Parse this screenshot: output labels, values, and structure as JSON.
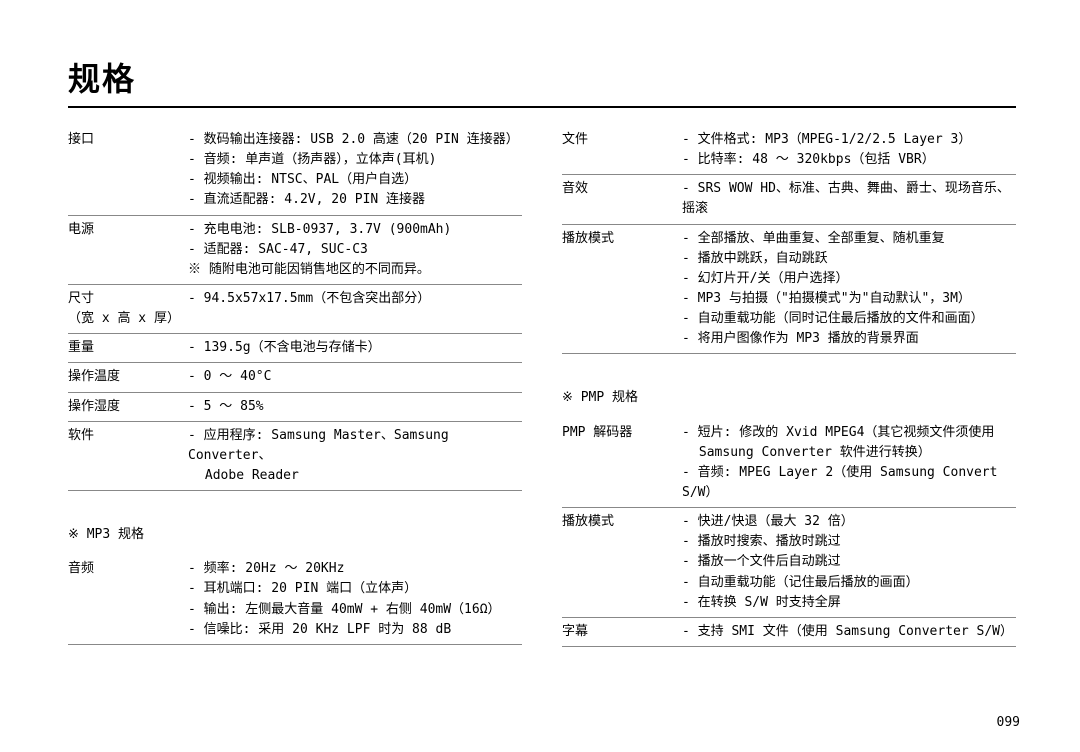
{
  "page_title": "规格",
  "page_number": "099",
  "left": {
    "rows": [
      {
        "label": "接口",
        "values": [
          {
            "t": "item",
            "v": "数码输出连接器: USB 2.0 高速（20 PIN 连接器）"
          },
          {
            "t": "item",
            "v": "音频: 单声道（扬声器），立体声(耳机)"
          },
          {
            "t": "item",
            "v": "视频输出: NTSC、PAL（用户自选）"
          },
          {
            "t": "item",
            "v": "直流适配器: 4.2V, 20 PIN 连接器"
          }
        ]
      },
      {
        "label": "电源",
        "values": [
          {
            "t": "item",
            "v": "充电电池: SLB-0937, 3.7V (900mAh)"
          },
          {
            "t": "item",
            "v": "适配器: SAC-47, SUC-C3"
          },
          {
            "t": "note",
            "v": "随附电池可能因销售地区的不同而异。"
          }
        ]
      },
      {
        "label": "尺寸\n（宽 x 高 x 厚）",
        "values": [
          {
            "t": "item",
            "v": "94.5x57x17.5mm（不包含突出部分）"
          }
        ]
      },
      {
        "label": "重量",
        "values": [
          {
            "t": "item",
            "v": "139.5g（不含电池与存储卡）"
          }
        ]
      },
      {
        "label": "操作温度",
        "values": [
          {
            "t": "item",
            "v": "0 ～ 40°C"
          }
        ]
      },
      {
        "label": "操作湿度",
        "values": [
          {
            "t": "item",
            "v": "5 ～ 85%"
          }
        ]
      },
      {
        "label": "软件",
        "values": [
          {
            "t": "item",
            "v": "应用程序:  Samsung Master、Samsung Converter、"
          },
          {
            "t": "indent",
            "v": "Adobe Reader"
          }
        ]
      }
    ],
    "subheading": "MP3 规格",
    "rows2": [
      {
        "label": "音频",
        "values": [
          {
            "t": "item",
            "v": "频率: 20Hz ～ 20KHz"
          },
          {
            "t": "item",
            "v": "耳机端口: 20 PIN 端口（立体声）"
          },
          {
            "t": "item",
            "v": "输出: 左侧最大音量 40mW + 右侧 40mW（16Ω）"
          },
          {
            "t": "item",
            "v": "信噪比: 采用 20 KHz LPF 时为 88 dB"
          }
        ]
      }
    ]
  },
  "right": {
    "rows": [
      {
        "label": "文件",
        "values": [
          {
            "t": "item",
            "v": "文件格式: MP3（MPEG-1/2/2.5 Layer 3）"
          },
          {
            "t": "item",
            "v": "比特率: 48 ～ 320kbps（包括 VBR）"
          }
        ]
      },
      {
        "label": "音效",
        "values": [
          {
            "t": "item",
            "v": "SRS WOW HD、标准、古典、舞曲、爵士、现场音乐、摇滚"
          }
        ]
      },
      {
        "label": "播放模式",
        "values": [
          {
            "t": "item",
            "v": "全部播放、单曲重复、全部重复、随机重复"
          },
          {
            "t": "item",
            "v": "播放中跳跃，自动跳跃"
          },
          {
            "t": "item",
            "v": "幻灯片开/关（用户选择）"
          },
          {
            "t": "item",
            "v": "MP3 与拍摄（\"拍摄模式\"为\"自动默认\"，3M）"
          },
          {
            "t": "item",
            "v": "自动重载功能（同时记住最后播放的文件和画面）"
          },
          {
            "t": "item",
            "v": "将用户图像作为 MP3 播放的背景界面"
          }
        ]
      }
    ],
    "subheading": "PMP 规格",
    "rows2": [
      {
        "label": "PMP 解码器",
        "values": [
          {
            "t": "item",
            "v": "短片: 修改的 Xvid MPEG4（其它视频文件须使用"
          },
          {
            "t": "indent",
            "v": "Samsung Converter 软件进行转换）"
          },
          {
            "t": "item",
            "v": "音频: MPEG Layer 2（使用 Samsung Convert S/W）"
          }
        ]
      },
      {
        "label": "播放模式",
        "values": [
          {
            "t": "item",
            "v": "快进/快退（最大 32 倍）"
          },
          {
            "t": "item",
            "v": "播放时搜索、播放时跳过"
          },
          {
            "t": "item",
            "v": "播放一个文件后自动跳过"
          },
          {
            "t": "item",
            "v": "自动重载功能（记住最后播放的画面）"
          },
          {
            "t": "item",
            "v": "在转换 S/W 时支持全屏"
          }
        ]
      },
      {
        "label": "字幕",
        "values": [
          {
            "t": "item",
            "v": "支持 SMI 文件（使用 Samsung Converter S/W）"
          }
        ]
      }
    ]
  }
}
